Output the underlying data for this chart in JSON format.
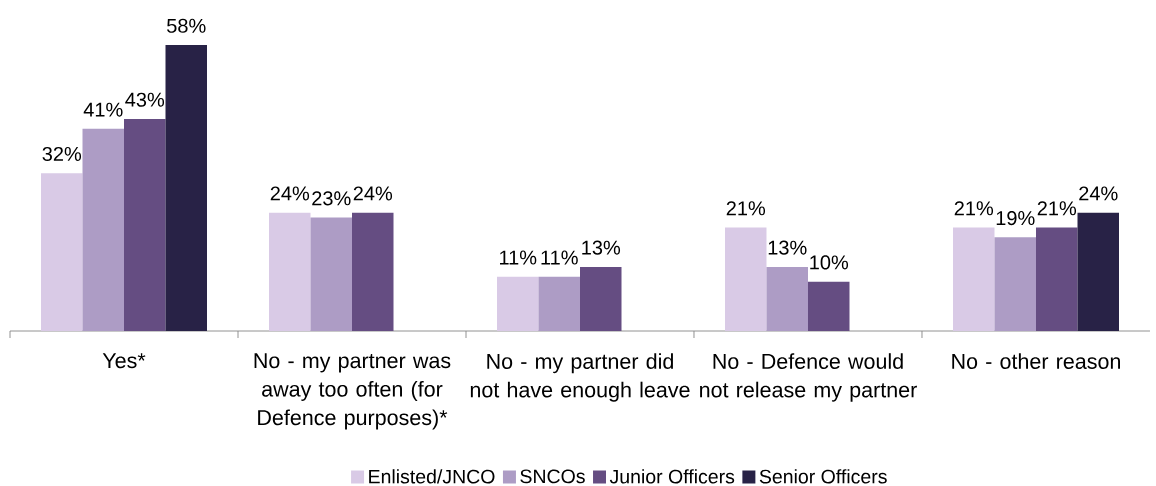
{
  "chart_data": {
    "type": "bar",
    "categories": [
      "Yes*",
      "No - my partner was away too often (for Defence purposes)*",
      "No - my partner did not have enough leave",
      "No - Defence would not release my partner",
      "No - other reason"
    ],
    "series": [
      {
        "name": "Enlisted/JNCO",
        "color": "#d9cae6",
        "values": [
          32,
          24,
          11,
          21,
          21
        ],
        "value_labels": [
          "32%",
          "24%",
          "11%",
          "21%",
          "21%"
        ]
      },
      {
        "name": "SNCOs",
        "color": "#ad9cc5",
        "values": [
          41,
          23,
          11,
          13,
          19
        ],
        "value_labels": [
          "41%",
          "23%",
          "11%",
          "13%",
          "19%"
        ]
      },
      {
        "name": "Junior Officers",
        "color": "#654d82",
        "values": [
          43,
          24,
          13,
          10,
          21
        ],
        "value_labels": [
          "43%",
          "24%",
          "13%",
          "10%",
          "21%"
        ]
      },
      {
        "name": "Senior Officers",
        "color": "#282246",
        "values": [
          58,
          null,
          null,
          null,
          24
        ],
        "value_labels": [
          "58%",
          null,
          null,
          null,
          "24%"
        ]
      }
    ],
    "legend": "bottom"
  }
}
